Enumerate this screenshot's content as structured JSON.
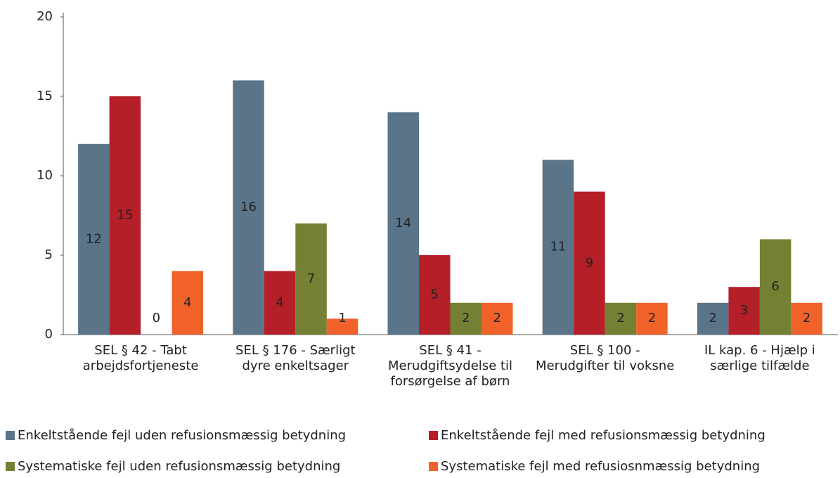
{
  "chart_data": {
    "type": "bar",
    "categories": [
      "SEL § 42 - Tabt arbejdsfortjeneste",
      "SEL § 176 - Særligt dyre enkeltsager",
      "SEL § 41 - Merudgiftsydelse til forsørgelse af børn",
      "SEL § 100 - Merudgifter til voksne",
      "IL kap. 6 - Hjælp i særlige tilfælde"
    ],
    "series": [
      {
        "name": "Enkeltstående fejl uden refusionsmæssig betydning",
        "color": "#5a7489",
        "values": [
          12,
          16,
          14,
          11,
          2
        ]
      },
      {
        "name": "Enkeltstående fejl med refusionsmæssig betydning",
        "color": "#b41f28",
        "values": [
          15,
          4,
          5,
          9,
          3
        ]
      },
      {
        "name": "Systematiske fejl uden refusionsmæssig betydning",
        "color": "#748033",
        "values": [
          0,
          7,
          2,
          2,
          6
        ]
      },
      {
        "name": "Systematiske fejl med refusiosnmæssig betydning",
        "color": "#f0622a",
        "values": [
          4,
          1,
          2,
          2,
          2
        ]
      }
    ],
    "ylim": [
      0,
      20
    ],
    "yticks": [
      0,
      5,
      10,
      15,
      20
    ],
    "grid": false,
    "legend": "bottom"
  }
}
